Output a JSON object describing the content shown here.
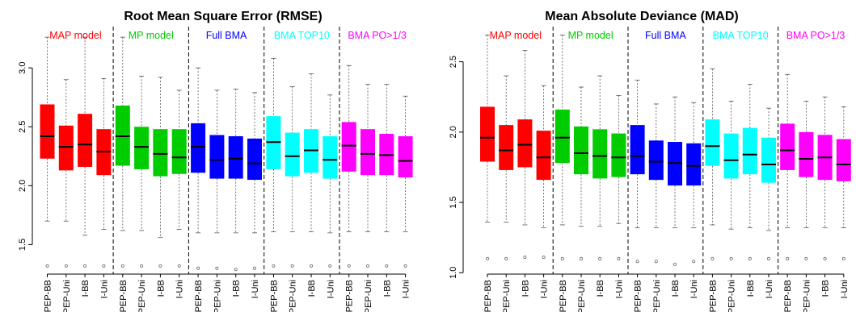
{
  "chart_data": [
    {
      "type": "box",
      "title": "Root Mean Square Error (RMSE)",
      "xlabel": "",
      "ylabel": "",
      "ylim": [
        1.25,
        3.35
      ],
      "yticks": [
        1.5,
        2.0,
        2.5,
        3.0
      ],
      "ytick_labels": [
        "1.5",
        "2.0",
        "2.5",
        "3.0"
      ],
      "legend": "none",
      "groups": [
        {
          "name": "MAP model",
          "color": "#ff0000"
        },
        {
          "name": "MP model",
          "color": "#00cc00"
        },
        {
          "name": "Full BMA",
          "color": "#0000ff"
        },
        {
          "name": "BMA TOP10",
          "color": "#00ffff"
        },
        {
          "name": "BMA PO>1/3",
          "color": "#ff00ff"
        }
      ],
      "categories": [
        "PEP-BB",
        "PEP-Uni",
        "I-BB",
        "I-Uni"
      ],
      "boxes": [
        [
          {
            "min": 1.7,
            "q1": 2.23,
            "median": 2.42,
            "q3": 2.69,
            "max": 3.26,
            "outliers": [
              1.32
            ]
          },
          {
            "min": 1.7,
            "q1": 2.13,
            "median": 2.33,
            "q3": 2.51,
            "max": 2.9,
            "outliers": [
              1.32
            ]
          },
          {
            "min": 1.58,
            "q1": 2.16,
            "median": 2.35,
            "q3": 2.61,
            "max": 3.26,
            "outliers": [
              1.32
            ]
          },
          {
            "min": 1.63,
            "q1": 2.09,
            "median": 2.29,
            "q3": 2.48,
            "max": 2.91,
            "outliers": [
              1.32
            ]
          }
        ],
        [
          {
            "min": 1.62,
            "q1": 2.17,
            "median": 2.42,
            "q3": 2.68,
            "max": 3.26,
            "outliers": [
              1.32
            ]
          },
          {
            "min": 1.62,
            "q1": 2.14,
            "median": 2.33,
            "q3": 2.5,
            "max": 2.93,
            "outliers": [
              1.32
            ]
          },
          {
            "min": 1.56,
            "q1": 2.08,
            "median": 2.27,
            "q3": 2.48,
            "max": 2.92,
            "outliers": [
              1.32
            ]
          },
          {
            "min": 1.63,
            "q1": 2.1,
            "median": 2.24,
            "q3": 2.48,
            "max": 2.81,
            "outliers": [
              1.32
            ]
          }
        ],
        [
          {
            "min": 1.6,
            "q1": 2.11,
            "median": 2.33,
            "q3": 2.53,
            "max": 3.0,
            "outliers": [
              1.3
            ]
          },
          {
            "min": 1.6,
            "q1": 2.06,
            "median": 2.22,
            "q3": 2.43,
            "max": 2.81,
            "outliers": [
              1.3
            ]
          },
          {
            "min": 1.6,
            "q1": 2.06,
            "median": 2.23,
            "q3": 2.42,
            "max": 2.82,
            "outliers": [
              1.29
            ]
          },
          {
            "min": 1.6,
            "q1": 2.05,
            "median": 2.19,
            "q3": 2.4,
            "max": 2.79,
            "outliers": [
              1.3
            ]
          }
        ],
        [
          {
            "min": 1.61,
            "q1": 2.14,
            "median": 2.37,
            "q3": 2.59,
            "max": 3.08,
            "outliers": [
              1.32
            ]
          },
          {
            "min": 1.61,
            "q1": 2.08,
            "median": 2.25,
            "q3": 2.45,
            "max": 2.84,
            "outliers": [
              1.32
            ]
          },
          {
            "min": 1.61,
            "q1": 2.11,
            "median": 2.3,
            "q3": 2.48,
            "max": 2.95,
            "outliers": [
              1.32
            ]
          },
          {
            "min": 1.6,
            "q1": 2.06,
            "median": 2.22,
            "q3": 2.42,
            "max": 2.77,
            "outliers": [
              1.32
            ]
          }
        ],
        [
          {
            "min": 1.61,
            "q1": 2.12,
            "median": 2.34,
            "q3": 2.54,
            "max": 3.02,
            "outliers": [
              1.32
            ]
          },
          {
            "min": 1.61,
            "q1": 2.09,
            "median": 2.27,
            "q3": 2.48,
            "max": 2.86,
            "outliers": [
              1.32
            ]
          },
          {
            "min": 1.61,
            "q1": 2.09,
            "median": 2.26,
            "q3": 2.44,
            "max": 2.86,
            "outliers": [
              1.32
            ]
          },
          {
            "min": 1.61,
            "q1": 2.07,
            "median": 2.21,
            "q3": 2.42,
            "max": 2.76,
            "outliers": [
              1.32
            ]
          }
        ]
      ]
    },
    {
      "type": "box",
      "title": "Mean Absolute Deviance (MAD)",
      "xlabel": "",
      "ylabel": "",
      "ylim": [
        0.99,
        2.75
      ],
      "yticks": [
        1.0,
        1.5,
        2.0,
        2.5
      ],
      "ytick_labels": [
        "1.0",
        "1.5",
        "2.0",
        "2.5"
      ],
      "legend": "none",
      "groups": [
        {
          "name": "MAP model",
          "color": "#ff0000"
        },
        {
          "name": "MP model",
          "color": "#00cc00"
        },
        {
          "name": "Full BMA",
          "color": "#0000ff"
        },
        {
          "name": "BMA TOP10",
          "color": "#00ffff"
        },
        {
          "name": "BMA PO>1/3",
          "color": "#ff00ff"
        }
      ],
      "categories": [
        "PEP-BB",
        "PEP-Uni",
        "I-BB",
        "I-Uni"
      ],
      "boxes": [
        [
          {
            "min": 1.36,
            "q1": 1.79,
            "median": 1.96,
            "q3": 2.18,
            "max": 2.69,
            "outliers": [
              1.1
            ]
          },
          {
            "min": 1.36,
            "q1": 1.73,
            "median": 1.87,
            "q3": 2.05,
            "max": 2.4,
            "outliers": [
              1.1
            ]
          },
          {
            "min": 1.34,
            "q1": 1.75,
            "median": 1.91,
            "q3": 2.09,
            "max": 2.58,
            "outliers": [
              1.11
            ]
          },
          {
            "min": 1.32,
            "q1": 1.66,
            "median": 1.82,
            "q3": 2.01,
            "max": 2.33,
            "outliers": [
              1.11
            ]
          }
        ],
        [
          {
            "min": 1.34,
            "q1": 1.78,
            "median": 1.96,
            "q3": 2.16,
            "max": 2.69,
            "outliers": [
              1.1
            ]
          },
          {
            "min": 1.33,
            "q1": 1.7,
            "median": 1.85,
            "q3": 2.04,
            "max": 2.32,
            "outliers": [
              1.1
            ]
          },
          {
            "min": 1.33,
            "q1": 1.67,
            "median": 1.83,
            "q3": 2.02,
            "max": 2.4,
            "outliers": [
              1.1
            ]
          },
          {
            "min": 1.35,
            "q1": 1.68,
            "median": 1.82,
            "q3": 1.99,
            "max": 2.26,
            "outliers": [
              1.1
            ]
          }
        ],
        [
          {
            "min": 1.32,
            "q1": 1.7,
            "median": 1.83,
            "q3": 2.05,
            "max": 2.37,
            "outliers": [
              1.08
            ]
          },
          {
            "min": 1.32,
            "q1": 1.66,
            "median": 1.79,
            "q3": 1.94,
            "max": 2.2,
            "outliers": [
              1.08
            ]
          },
          {
            "min": 1.32,
            "q1": 1.62,
            "median": 1.78,
            "q3": 1.93,
            "max": 2.25,
            "outliers": [
              1.06
            ]
          },
          {
            "min": 1.32,
            "q1": 1.62,
            "median": 1.76,
            "q3": 1.92,
            "max": 2.21,
            "outliers": [
              1.08
            ]
          }
        ],
        [
          {
            "min": 1.34,
            "q1": 1.76,
            "median": 1.9,
            "q3": 2.09,
            "max": 2.45,
            "outliers": [
              1.1
            ]
          },
          {
            "min": 1.31,
            "q1": 1.67,
            "median": 1.8,
            "q3": 1.99,
            "max": 2.22,
            "outliers": [
              1.1
            ]
          },
          {
            "min": 1.32,
            "q1": 1.7,
            "median": 1.84,
            "q3": 2.03,
            "max": 2.34,
            "outliers": [
              1.1
            ]
          },
          {
            "min": 1.3,
            "q1": 1.64,
            "median": 1.77,
            "q3": 1.96,
            "max": 2.17,
            "outliers": [
              1.1
            ]
          }
        ],
        [
          {
            "min": 1.32,
            "q1": 1.73,
            "median": 1.87,
            "q3": 2.06,
            "max": 2.41,
            "outliers": [
              1.1
            ]
          },
          {
            "min": 1.32,
            "q1": 1.68,
            "median": 1.81,
            "q3": 2.0,
            "max": 2.22,
            "outliers": [
              1.1
            ]
          },
          {
            "min": 1.32,
            "q1": 1.66,
            "median": 1.82,
            "q3": 1.98,
            "max": 2.25,
            "outliers": [
              1.1
            ]
          },
          {
            "min": 1.32,
            "q1": 1.65,
            "median": 1.77,
            "q3": 1.95,
            "max": 2.18,
            "outliers": [
              1.1
            ]
          }
        ]
      ]
    }
  ]
}
